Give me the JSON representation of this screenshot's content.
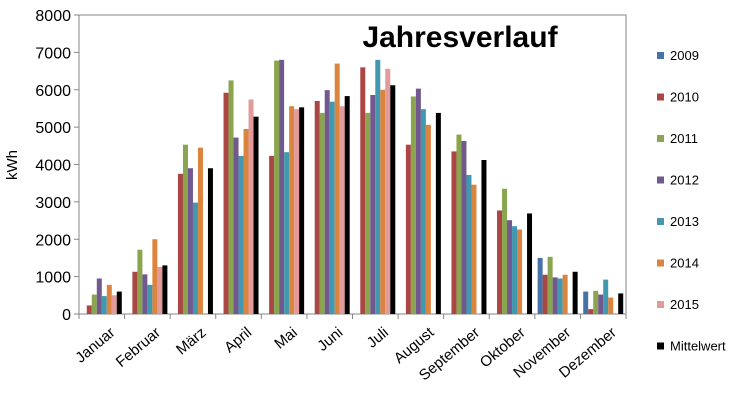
{
  "chart_data": {
    "type": "bar",
    "title": "Jahresverlauf",
    "ylabel": "kWh",
    "xlabel": "",
    "ylim": [
      0,
      8000
    ],
    "yticks": [
      0,
      1000,
      2000,
      3000,
      4000,
      5000,
      6000,
      7000,
      8000
    ],
    "grid": false,
    "legend_position": "right",
    "categories": [
      "Januar",
      "Februar",
      "März",
      "April",
      "Mai",
      "Juni",
      "Juli",
      "August",
      "September",
      "Oktober",
      "November",
      "Dezember"
    ],
    "series": [
      {
        "name": "2009",
        "color": "#4572A7",
        "values": [
          0,
          0,
          0,
          0,
          0,
          0,
          0,
          0,
          0,
          0,
          1500,
          600
        ]
      },
      {
        "name": "2010",
        "color": "#AA4643",
        "values": [
          230,
          1130,
          3750,
          5920,
          4230,
          5700,
          6600,
          4530,
          4350,
          2770,
          1050,
          130
        ]
      },
      {
        "name": "2011",
        "color": "#89A54E",
        "values": [
          520,
          1720,
          4530,
          6250,
          6780,
          5380,
          5380,
          5820,
          4800,
          3350,
          1530,
          620
        ]
      },
      {
        "name": "2012",
        "color": "#71588F",
        "values": [
          950,
          1060,
          3900,
          4720,
          6800,
          5990,
          5860,
          6030,
          4630,
          2510,
          980,
          520
        ]
      },
      {
        "name": "2013",
        "color": "#4198AF",
        "values": [
          480,
          780,
          2980,
          4230,
          4330,
          5680,
          6800,
          5480,
          3720,
          2350,
          950,
          920
        ]
      },
      {
        "name": "2014",
        "color": "#DB843D",
        "values": [
          780,
          2000,
          4450,
          4950,
          5560,
          6700,
          6000,
          5060,
          3460,
          2260,
          1050,
          440
        ]
      },
      {
        "name": "2015",
        "color": "#E39A9A",
        "values": [
          500,
          1260,
          0,
          5740,
          5480,
          5560,
          6560,
          0,
          0,
          0,
          0,
          0
        ]
      },
      {
        "name": "Mittelwert",
        "color": "#000000",
        "values": [
          600,
          1300,
          3900,
          5280,
          5530,
          5830,
          6120,
          5380,
          4120,
          2690,
          1130,
          550
        ]
      }
    ]
  }
}
